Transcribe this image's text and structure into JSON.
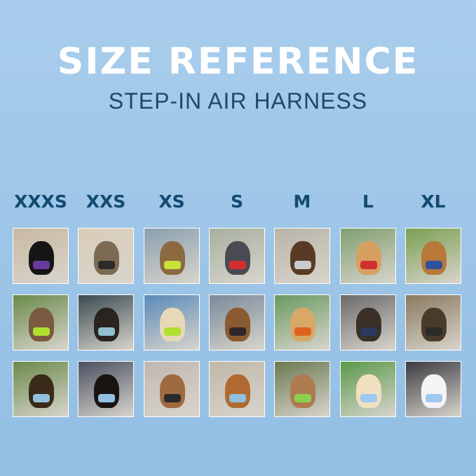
{
  "header": {
    "title": "SIZE REFERENCE",
    "subtitle": "STEP-IN AIR HARNESS"
  },
  "sizes": [
    {
      "label": "XXXS"
    },
    {
      "label": "XXS"
    },
    {
      "label": "XS"
    },
    {
      "label": "S"
    },
    {
      "label": "M"
    },
    {
      "label": "L"
    },
    {
      "label": "XL"
    }
  ],
  "colors": {
    "title": "#ffffff",
    "subtitle": "#1b4a6e",
    "size_label": "#134a72",
    "background": "#9ec6e8"
  }
}
